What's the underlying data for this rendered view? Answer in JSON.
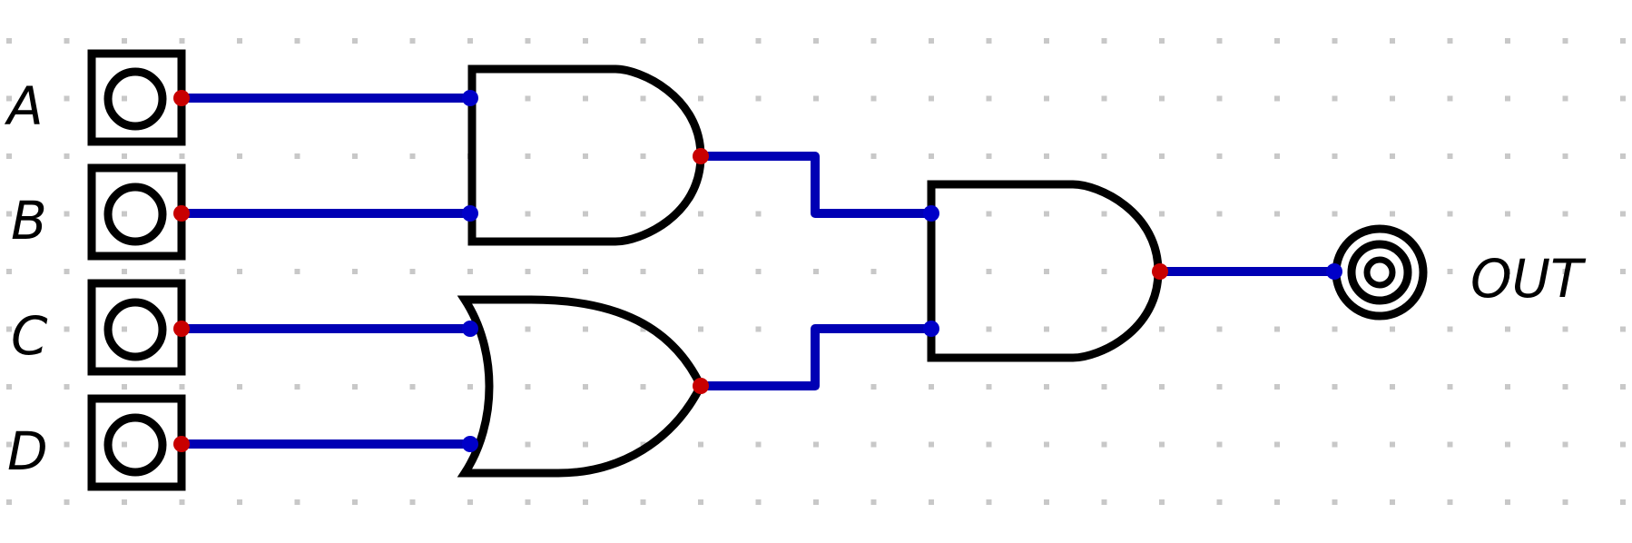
{
  "circuit": {
    "inputs": [
      "A",
      "B",
      "C",
      "D"
    ],
    "output": "OUT",
    "gates": [
      {
        "type": "AND",
        "inputs": [
          "A",
          "B"
        ]
      },
      {
        "type": "OR",
        "inputs": [
          "C",
          "D"
        ]
      },
      {
        "type": "AND",
        "inputs": [
          "AND1",
          "OR1"
        ]
      }
    ],
    "grid": true
  },
  "colors": {
    "wire": "#0000b4",
    "input_node": "#0000c8",
    "output_node": "#c80000",
    "gate_stroke": "#000000",
    "grid_dot": "#c8c8c8"
  }
}
